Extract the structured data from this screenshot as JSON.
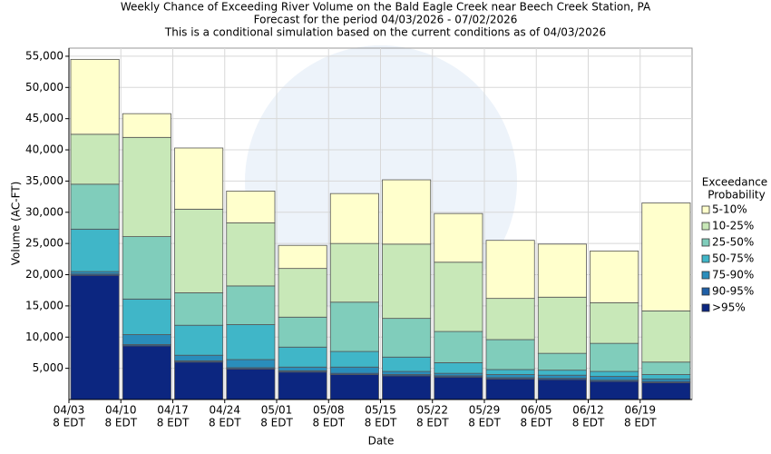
{
  "chart_data": {
    "type": "stacked_bar",
    "title": "Weekly Chance of Exceeding River Volume on the Bald Eagle Creek near Beech Creek Station, PA",
    "subtitle": [
      "Forecast for the period 04/03/2026 - 07/02/2026",
      "This is a conditional simulation based on the current conditions as of 04/03/2026"
    ],
    "x_label": "Date",
    "y_label": "Volume (AC-FT)",
    "legend_title": [
      "Exceedance",
      "Probability"
    ],
    "legend_position": "right",
    "grid": true,
    "categories": [
      "04/03",
      "04/10",
      "04/17",
      "04/24",
      "05/01",
      "05/08",
      "05/15",
      "05/22",
      "05/29",
      "06/05",
      "06/12",
      "06/19"
    ],
    "category_sublabels": [
      "8 EDT",
      "8 EDT",
      "8 EDT",
      "8 EDT",
      "8 EDT",
      "8 EDT",
      "8 EDT",
      "8 EDT",
      "8 EDT",
      "8 EDT",
      "8 EDT",
      "8 EDT"
    ],
    "ylim": [
      0,
      56300
    ],
    "yticks": [
      {
        "value": 5000,
        "label": "5,000"
      },
      {
        "value": 10000,
        "label": "10,000"
      },
      {
        "value": 15000,
        "label": "15,000"
      },
      {
        "value": 20000,
        "label": "20,000"
      },
      {
        "value": 25000,
        "label": "25,000"
      },
      {
        "value": 30000,
        "label": "30,000"
      },
      {
        "value": 35000,
        "label": "35,000"
      },
      {
        "value": 40000,
        "label": "40,000"
      },
      {
        "value": 45000,
        "label": "45,000"
      },
      {
        "value": 50000,
        "label": "50,000"
      },
      {
        "value": 55000,
        "label": "55,000"
      }
    ],
    "series": [
      {
        "name": ">95%",
        "color": "#0c2680",
        "values": [
          19900,
          8600,
          6000,
          4900,
          4400,
          4000,
          3800,
          3600,
          3300,
          3200,
          2900,
          2700
        ]
      },
      {
        "name": "90-95%",
        "color": "#1f5fa6",
        "values": [
          200,
          200,
          200,
          200,
          200,
          200,
          200,
          200,
          200,
          200,
          200,
          200
        ]
      },
      {
        "name": "75-90%",
        "color": "#2a8dbb",
        "values": [
          400,
          1600,
          900,
          1300,
          600,
          1000,
          500,
          400,
          500,
          500,
          600,
          400
        ]
      },
      {
        "name": "50-75%",
        "color": "#40b6c8",
        "values": [
          6800,
          5700,
          4800,
          5600,
          3200,
          2500,
          2300,
          1700,
          800,
          800,
          800,
          700
        ]
      },
      {
        "name": "25-50%",
        "color": "#80cdbb",
        "values": [
          7200,
          10000,
          5200,
          6200,
          4800,
          7900,
          6200,
          5000,
          4800,
          2700,
          4500,
          2000
        ]
      },
      {
        "name": "10-25%",
        "color": "#c8e8b8",
        "values": [
          8000,
          15900,
          13400,
          10100,
          7800,
          9400,
          11900,
          11100,
          6600,
          9000,
          6500,
          8200
        ]
      },
      {
        "name": "5-10%",
        "color": "#ffffcc",
        "values": [
          12000,
          3800,
          9800,
          5100,
          3700,
          8000,
          10300,
          7800,
          9300,
          8500,
          8300,
          17300
        ]
      }
    ]
  }
}
